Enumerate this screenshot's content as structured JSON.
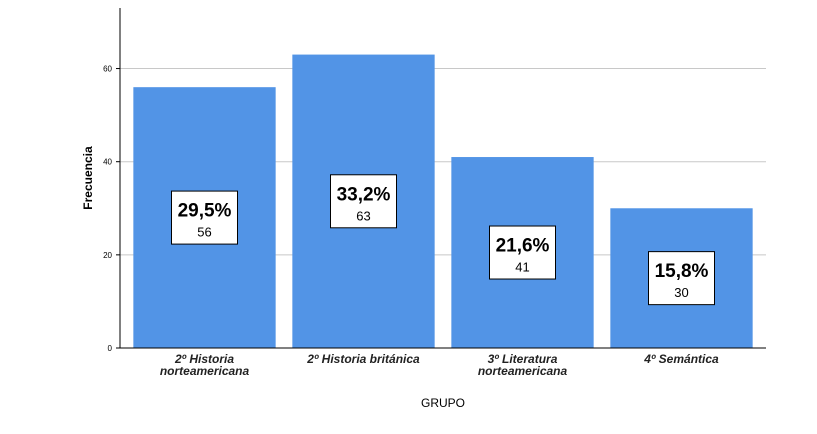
{
  "chart_data": {
    "type": "bar",
    "xlabel": "GRUPO",
    "ylabel": "Frecuencia",
    "categories": [
      [
        "2º Historia",
        "norteamericana"
      ],
      [
        "2º Historia británica"
      ],
      [
        "3º Literatura",
        "norteamericana"
      ],
      [
        "4º Semántica"
      ]
    ],
    "values": [
      56,
      63,
      41,
      30
    ],
    "percent_labels": [
      "29,5%",
      "33,2%",
      "21,6%",
      "15,8%"
    ],
    "count_labels": [
      "56",
      "63",
      "41",
      "30"
    ],
    "yticks": [
      0,
      20,
      40,
      60
    ],
    "ylim": [
      0,
      73
    ],
    "grid": true,
    "bar_color": "#5294e6"
  }
}
